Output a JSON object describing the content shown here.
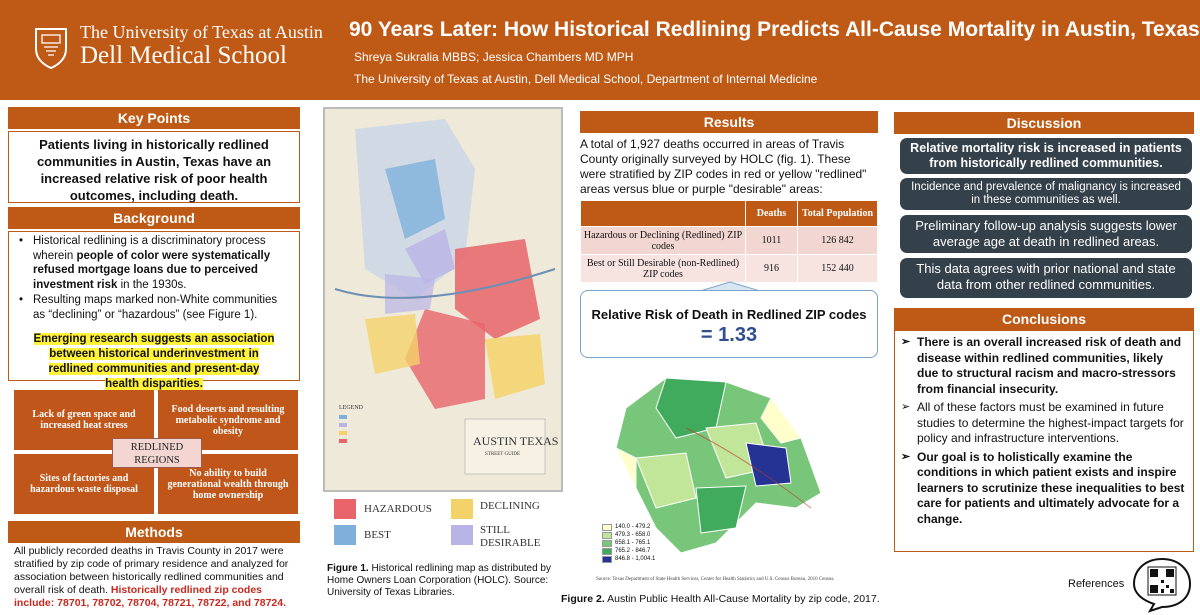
{
  "header": {
    "university": "The University of Texas at Austin",
    "school": "Dell Medical School",
    "title": "90 Years Later: How Historical Redlining Predicts All-Cause Mortality in Austin, Texas",
    "authors": "Shreya Sukralia MBBS; Jessica Chambers MD MPH",
    "affiliation": "The University of Texas at Austin, Dell Medical School, Department of Internal Medicine"
  },
  "key_points": {
    "heading": "Key Points",
    "text": "Patients living in historically redlined communities in Austin, Texas have an increased relative risk of poor health outcomes, including death."
  },
  "background": {
    "heading": "Background",
    "b1_pre": "Historical redlining is a discriminatory process wherein ",
    "b1_bold": "people of color were systematically refused mortgage loans due to perceived investment risk",
    "b1_post": " in the 1930s.",
    "b2": "Resulting maps marked non-White communities as “declining” or “hazardous” (see Figure 1).",
    "highlight": "Emerging research suggests an association between historical underinvestment in redlined communities and present-day health disparities."
  },
  "regions": {
    "center": "REDLINED REGIONS",
    "q1": "Lack of green space and increased heat stress",
    "q2": "Food deserts and resulting metabolic syndrome and obesity",
    "q3": "Sites of factories and hazardous waste disposal",
    "q4": "No ability to build generational wealth through home ownership"
  },
  "methods": {
    "heading": "Methods",
    "text": "All publicly recorded deaths in Travis County in 2017 were stratified by zip code of primary residence and analyzed for association between historically redlined communities and overall risk of death. ",
    "red": "Historically redlined zip codes include: 78701, 78702, 78704, 78721, 78722, and 78724."
  },
  "figure1": {
    "map_title": "AUSTIN TEXAS",
    "map_subtitle": "STREET GUIDE",
    "map_legend_title": "LEGEND",
    "legend": [
      {
        "label": "HAZARDOUS",
        "color": "#e8646a"
      },
      {
        "label": "DECLINING",
        "color": "#f4d26a"
      },
      {
        "label": "BEST",
        "color": "#7fb0dc"
      },
      {
        "label": "STILL DESIRABLE",
        "color": "#b9b4e6"
      }
    ],
    "caption_bold": "Figure 1.",
    "caption": " Historical redlining map as distributed by Home Owners Loan Corporation (HOLC). Source: University of Texas Libraries."
  },
  "results": {
    "heading": "Results",
    "text": "A total of 1,927 deaths occurred in areas of Travis County originally surveyed by HOLC (fig. 1). These were stratified by ZIP codes in red or yellow \"redlined\" areas versus blue or purple \"desirable\" areas:",
    "table": {
      "headers": [
        "",
        "Deaths",
        "Total Population"
      ],
      "rows": [
        [
          "Hazardous or Declining (Redlined) ZIP codes",
          "1011",
          "126 842"
        ],
        [
          "Best or Still Desirable (non-Redlined) ZIP codes",
          "916",
          "152 440"
        ]
      ]
    },
    "rr_title": "Relative Risk of Death in Redlined ZIP codes",
    "rr_value": "= 1.33"
  },
  "figure2": {
    "legend": [
      {
        "label": "140.0 - 479.2",
        "color": "#ffffcc"
      },
      {
        "label": "479.3 - 658.0",
        "color": "#c2e699"
      },
      {
        "label": "658.1 - 765.1",
        "color": "#78c679"
      },
      {
        "label": "765.2 - 846.7",
        "color": "#41ab5d"
      },
      {
        "label": "846.8 - 1,004.1",
        "color": "#253494"
      }
    ],
    "source": "Source: Texas Department of State Health Services, Center for Health Statistics and U.S. Census Bureau, 2010 Census.",
    "caption_bold": "Figure 2.",
    "caption": " Austin Public Health All-Cause Mortality by zip code, 2017."
  },
  "discussion": {
    "heading": "Discussion",
    "items": [
      "Relative mortality risk is increased in patients from historically redlined communities.",
      "Incidence and prevalence of malignancy is increased in these communities as well.",
      "Preliminary follow-up analysis suggests lower average age at death in redlined areas.",
      "This data agrees with prior national and state data from other redlined communities."
    ]
  },
  "conclusions": {
    "heading": "Conclusions",
    "items": [
      "There is an overall increased risk of death and disease within redlined communities, likely due to structural racism and macro-stressors from financial insecurity.",
      "All of these factors must be examined in future studies to determine the highest-impact targets for policy and infrastructure interventions.",
      "Our goal is to holistically examine the conditions in which patient exists and inspire learners to scrutinize these inequalities to best care for patients and ultimately advocate for a change."
    ]
  },
  "references": {
    "label": "References"
  }
}
